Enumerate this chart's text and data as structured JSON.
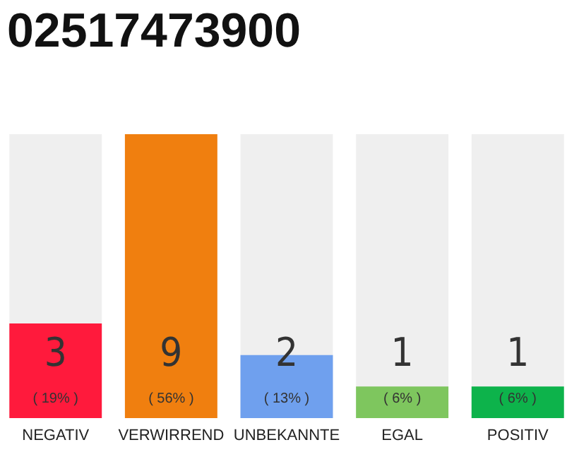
{
  "chart_data": {
    "type": "bar",
    "title": "02517473900",
    "categories": [
      "NEGATIV",
      "VERWIRREND",
      "UNBEKANNTE",
      "EGAL",
      "POSITIV"
    ],
    "values": [
      3,
      9,
      2,
      1,
      1
    ],
    "colors": [
      "#ff1a3c",
      "#f07f0f",
      "#6fa0ee",
      "#7ec65e",
      "#0db34b"
    ],
    "ylim": [
      0,
      9
    ],
    "data_labels": true,
    "tick_labels": "x",
    "annotations": [
      "( 19% )",
      "( 56% )",
      "( 13% )",
      "( 6% )",
      "( 6% )"
    ]
  }
}
